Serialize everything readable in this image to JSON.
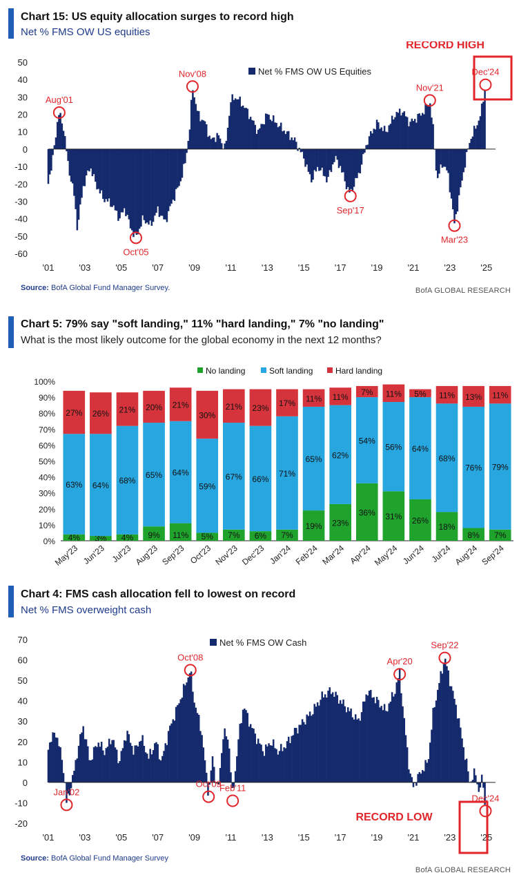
{
  "colors": {
    "navy": "#142a6c",
    "red": "#e0262b",
    "green": "#1fa32d",
    "blue": "#27a6df",
    "hard": "#d6343c",
    "accent": "#1f5fb8"
  },
  "brand": "BofA GLOBAL RESEARCH",
  "chart15": {
    "title": "Chart 15: US equity allocation surges to record high",
    "subtitle": "Net % FMS OW US equities",
    "source_label": "Source:",
    "source_text": " BofA Global Fund Manager Survey.",
    "record_label": "RECORD HIGH",
    "legend": "Net % FMS OW US Equities"
  },
  "chart5": {
    "title": "Chart 5: 79% say \"soft landing,\" 11% \"hard landing,\" 7% \"no landing\"",
    "subtitle": "What is the most likely outcome for the global economy in the next 12 months?"
  },
  "chart4": {
    "title": "Chart 4: FMS cash allocation fell to lowest on record",
    "subtitle": "Net % FMS overweight cash",
    "source_label": "Source:",
    "source_text": " BofA Global Fund Manager Survey",
    "record_label": "RECORD LOW",
    "legend": "Net % FMS OW Cash"
  },
  "chart_data": [
    {
      "type": "bar",
      "title": "Chart 15: US equity allocation surges to record high",
      "ylabel": "Net % FMS OW US equities",
      "ylim": [
        -60,
        50
      ],
      "yticks": [
        50,
        40,
        30,
        20,
        10,
        0,
        -10,
        -20,
        -30,
        -40,
        -50,
        -60
      ],
      "xlim": [
        2001,
        2025.5
      ],
      "xticks": [
        {
          "v": 2001,
          "label": "'01"
        },
        {
          "v": 2003,
          "label": "'03"
        },
        {
          "v": 2005,
          "label": "'05"
        },
        {
          "v": 2007,
          "label": "'07"
        },
        {
          "v": 2009,
          "label": "'09"
        },
        {
          "v": 2011,
          "label": "'11"
        },
        {
          "v": 2013,
          "label": "'13"
        },
        {
          "v": 2015,
          "label": "'15"
        },
        {
          "v": 2017,
          "label": "'17"
        },
        {
          "v": 2019,
          "label": "'19"
        },
        {
          "v": 2021,
          "label": "'21"
        },
        {
          "v": 2023,
          "label": "'23"
        },
        {
          "v": 2025,
          "label": "'25"
        }
      ],
      "series_name": "Net % FMS OW US Equities",
      "anchors": [
        [
          2001.0,
          -18
        ],
        [
          2001.2,
          -10
        ],
        [
          2001.45,
          12
        ],
        [
          2001.6,
          21
        ],
        [
          2001.85,
          12
        ],
        [
          2002.1,
          -10
        ],
        [
          2002.4,
          -25
        ],
        [
          2002.6,
          -46
        ],
        [
          2002.9,
          -22
        ],
        [
          2003.3,
          -10
        ],
        [
          2003.6,
          -20
        ],
        [
          2004.0,
          -28
        ],
        [
          2004.5,
          -32
        ],
        [
          2004.9,
          -40
        ],
        [
          2005.2,
          -34
        ],
        [
          2005.5,
          -45
        ],
        [
          2005.8,
          -51
        ],
        [
          2006.2,
          -40
        ],
        [
          2006.6,
          -44
        ],
        [
          2007.0,
          -35
        ],
        [
          2007.4,
          -42
        ],
        [
          2007.8,
          -30
        ],
        [
          2008.2,
          -20
        ],
        [
          2008.5,
          -8
        ],
        [
          2008.75,
          12
        ],
        [
          2008.9,
          36
        ],
        [
          2009.2,
          20
        ],
        [
          2009.6,
          15
        ],
        [
          2009.9,
          5
        ],
        [
          2010.3,
          8
        ],
        [
          2010.7,
          0
        ],
        [
          2011.0,
          28
        ],
        [
          2011.3,
          30
        ],
        [
          2011.7,
          25
        ],
        [
          2012.0,
          20
        ],
        [
          2012.5,
          10
        ],
        [
          2013.0,
          20
        ],
        [
          2013.5,
          15
        ],
        [
          2014.0,
          10
        ],
        [
          2014.5,
          5
        ],
        [
          2015.0,
          -5
        ],
        [
          2015.4,
          -18
        ],
        [
          2015.8,
          -10
        ],
        [
          2016.3,
          -18
        ],
        [
          2016.7,
          -5
        ],
        [
          2017.0,
          -10
        ],
        [
          2017.3,
          -20
        ],
        [
          2017.55,
          -26
        ],
        [
          2017.75,
          -20
        ],
        [
          2018.0,
          -15
        ],
        [
          2018.5,
          5
        ],
        [
          2019.0,
          15
        ],
        [
          2019.5,
          10
        ],
        [
          2020.0,
          20
        ],
        [
          2020.4,
          22
        ],
        [
          2020.8,
          15
        ],
        [
          2021.2,
          18
        ],
        [
          2021.6,
          22
        ],
        [
          2021.9,
          28
        ],
        [
          2022.1,
          10
        ],
        [
          2022.3,
          -18
        ],
        [
          2022.6,
          -8
        ],
        [
          2022.9,
          -14
        ],
        [
          2023.1,
          -30
        ],
        [
          2023.25,
          -43
        ],
        [
          2023.5,
          -28
        ],
        [
          2023.8,
          -10
        ],
        [
          2024.1,
          5
        ],
        [
          2024.4,
          12
        ],
        [
          2024.7,
          20
        ],
        [
          2024.95,
          37
        ]
      ],
      "annotations": [
        {
          "label": "Aug'01",
          "x": 2001.6,
          "y": 21
        },
        {
          "label": "Oct'05",
          "x": 2005.8,
          "y": -51
        },
        {
          "label": "Nov'08",
          "x": 2008.9,
          "y": 36
        },
        {
          "label": "Sep'17",
          "x": 2017.55,
          "y": -27
        },
        {
          "label": "Nov'21",
          "x": 2021.9,
          "y": 28
        },
        {
          "label": "Mar'23",
          "x": 2023.25,
          "y": -44
        },
        {
          "label": "Dec'24",
          "x": 2024.95,
          "y": 37
        }
      ]
    },
    {
      "type": "bar",
      "stacked": true,
      "title": "Chart 5: 79% say \"soft landing,\" 11% \"hard landing,\" 7% \"no landing\"",
      "ylim": [
        0,
        100
      ],
      "yticks": [
        "0%",
        "10%",
        "20%",
        "30%",
        "40%",
        "50%",
        "60%",
        "70%",
        "80%",
        "90%",
        "100%"
      ],
      "categories": [
        "May'23",
        "Jun'23",
        "Jul'23",
        "Aug'23",
        "Sep'23",
        "Oct'23",
        "Nov'23",
        "Dec'23",
        "Jan'24",
        "Feb'24",
        "Mar'24",
        "Apr'24",
        "May'24",
        "Jun'24",
        "Jul'24",
        "Aug'24",
        "Sep'24"
      ],
      "series": [
        {
          "name": "No landing",
          "values": [
            4,
            3,
            4,
            9,
            11,
            5,
            7,
            6,
            7,
            19,
            23,
            36,
            31,
            26,
            18,
            8,
            7
          ]
        },
        {
          "name": "Soft landing",
          "values": [
            63,
            64,
            68,
            65,
            64,
            59,
            67,
            66,
            71,
            65,
            62,
            54,
            56,
            64,
            68,
            76,
            79
          ]
        },
        {
          "name": "Hard landing",
          "values": [
            27,
            26,
            21,
            20,
            21,
            30,
            21,
            23,
            17,
            11,
            11,
            7,
            11,
            5,
            11,
            13,
            11
          ]
        }
      ],
      "legend_position": "top"
    },
    {
      "type": "bar",
      "title": "Chart 4: FMS cash allocation fell to lowest on record",
      "ylabel": "Net % FMS overweight cash",
      "ylim": [
        -20,
        70
      ],
      "yticks": [
        70,
        60,
        50,
        40,
        30,
        20,
        10,
        0,
        -10,
        -20
      ],
      "xlim": [
        2001,
        2025.5
      ],
      "xticks": [
        {
          "v": 2001,
          "label": "'01"
        },
        {
          "v": 2003,
          "label": "'03"
        },
        {
          "v": 2005,
          "label": "'05"
        },
        {
          "v": 2007,
          "label": "'07"
        },
        {
          "v": 2009,
          "label": "'09"
        },
        {
          "v": 2011,
          "label": "'11"
        },
        {
          "v": 2013,
          "label": "'13"
        },
        {
          "v": 2015,
          "label": "'15"
        },
        {
          "v": 2017,
          "label": "'17"
        },
        {
          "v": 2019,
          "label": "'19"
        },
        {
          "v": 2021,
          "label": "'21"
        },
        {
          "v": 2023,
          "label": "'23"
        },
        {
          "v": 2025,
          "label": "'25"
        }
      ],
      "series_name": "Net % FMS OW Cash",
      "anchors": [
        [
          2001.0,
          18
        ],
        [
          2001.4,
          25
        ],
        [
          2001.8,
          10
        ],
        [
          2002.0,
          -10
        ],
        [
          2002.3,
          0
        ],
        [
          2002.6,
          15
        ],
        [
          2002.9,
          28
        ],
        [
          2003.3,
          10
        ],
        [
          2003.7,
          20
        ],
        [
          2004.1,
          15
        ],
        [
          2004.5,
          22
        ],
        [
          2004.9,
          10
        ],
        [
          2005.3,
          25
        ],
        [
          2005.7,
          15
        ],
        [
          2006.1,
          22
        ],
        [
          2006.5,
          12
        ],
        [
          2006.9,
          20
        ],
        [
          2007.2,
          10
        ],
        [
          2007.6,
          25
        ],
        [
          2008.0,
          35
        ],
        [
          2008.4,
          45
        ],
        [
          2008.78,
          55
        ],
        [
          2009.0,
          40
        ],
        [
          2009.4,
          25
        ],
        [
          2009.78,
          -6
        ],
        [
          2010.0,
          12
        ],
        [
          2010.3,
          -5
        ],
        [
          2010.6,
          25
        ],
        [
          2010.9,
          20
        ],
        [
          2011.1,
          -8
        ],
        [
          2011.4,
          20
        ],
        [
          2011.7,
          38
        ],
        [
          2012.0,
          30
        ],
        [
          2012.4,
          22
        ],
        [
          2012.8,
          15
        ],
        [
          2013.2,
          20
        ],
        [
          2013.6,
          15
        ],
        [
          2014.0,
          18
        ],
        [
          2014.5,
          25
        ],
        [
          2015.0,
          30
        ],
        [
          2015.5,
          35
        ],
        [
          2016.0,
          42
        ],
        [
          2016.5,
          45
        ],
        [
          2017.0,
          40
        ],
        [
          2017.5,
          35
        ],
        [
          2018.0,
          30
        ],
        [
          2018.5,
          45
        ],
        [
          2019.0,
          40
        ],
        [
          2019.5,
          35
        ],
        [
          2020.0,
          45
        ],
        [
          2020.25,
          54
        ],
        [
          2020.5,
          30
        ],
        [
          2020.8,
          5
        ],
        [
          2021.0,
          -2
        ],
        [
          2021.4,
          5
        ],
        [
          2021.8,
          10
        ],
        [
          2022.1,
          35
        ],
        [
          2022.4,
          48
        ],
        [
          2022.72,
          61
        ],
        [
          2023.0,
          50
        ],
        [
          2023.4,
          35
        ],
        [
          2023.8,
          15
        ],
        [
          2024.1,
          0
        ],
        [
          2024.4,
          5
        ],
        [
          2024.6,
          -5
        ],
        [
          2024.8,
          3
        ],
        [
          2024.95,
          -14
        ]
      ],
      "annotations": [
        {
          "label": "Jan'02",
          "x": 2002.0,
          "y": -11
        },
        {
          "label": "Oct'08",
          "x": 2008.78,
          "y": 55
        },
        {
          "label": "Oct'09",
          "x": 2009.78,
          "y": -7
        },
        {
          "label": "Feb'11",
          "x": 2011.1,
          "y": -9
        },
        {
          "label": "Apr'20",
          "x": 2020.25,
          "y": 53
        },
        {
          "label": "Sep'22",
          "x": 2022.72,
          "y": 61
        },
        {
          "label": "Dec'24",
          "x": 2024.95,
          "y": -14
        }
      ]
    }
  ]
}
